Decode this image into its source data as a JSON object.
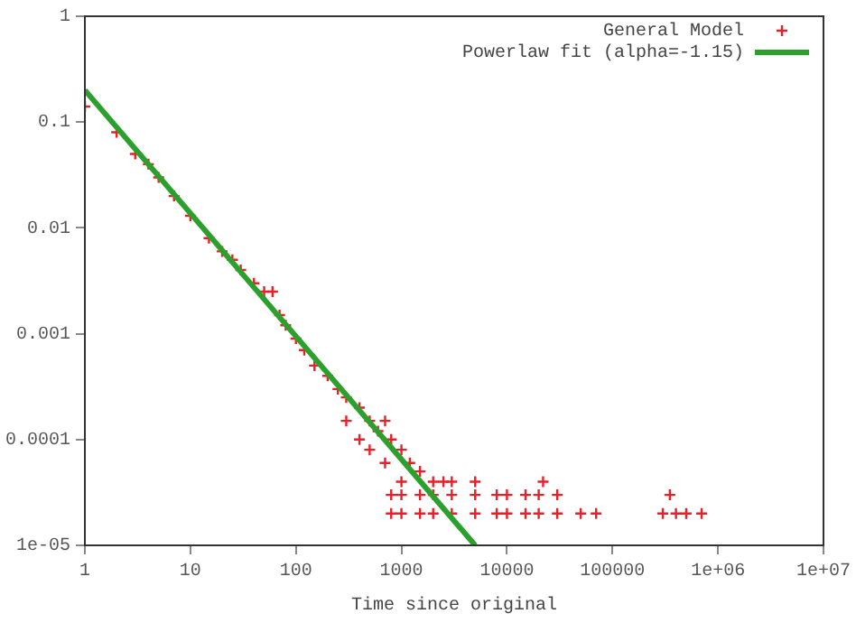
{
  "chart_data": {
    "type": "scatter",
    "xlabel": "Time since original",
    "log": "xy",
    "legend": "top right",
    "grid": false,
    "xlim": [
      1,
      10000000
    ],
    "xticks": [
      1,
      10,
      100,
      1000,
      10000,
      100000,
      {
        "value": 1000000,
        "label": "1e+06"
      },
      {
        "value": 10000000,
        "label": "1e+07"
      }
    ],
    "ylim": [
      1e-05,
      1
    ],
    "yticks": [
      {
        "value": 1e-05,
        "label": "1e-05"
      },
      0.0001,
      0.001,
      0.01,
      0.1,
      1
    ],
    "series": [
      {
        "name": "General Model",
        "type": "scatter",
        "marker": "cross",
        "color": "#e8202a",
        "x": [
          1,
          2,
          3,
          4,
          5,
          7,
          10,
          15,
          20,
          25,
          30,
          40,
          50,
          60,
          70,
          80,
          100,
          120,
          150,
          200,
          250,
          300,
          300,
          400,
          400,
          500,
          500,
          600,
          700,
          700,
          800,
          1000,
          1000,
          1200,
          1500,
          2000,
          2500,
          3000,
          5000,
          22000,
          800,
          1000,
          1500,
          2000,
          3000,
          5000,
          8000,
          10000,
          15000,
          20000,
          30000,
          350000,
          800,
          1000,
          1500,
          2000,
          3000,
          5000,
          8000,
          10000,
          15000,
          20000,
          30000,
          50000,
          70000,
          300000,
          400000,
          500000,
          700000
        ],
        "values": [
          0.14,
          0.08,
          0.05,
          0.04,
          0.03,
          0.02,
          0.013,
          0.008,
          0.006,
          0.005,
          0.004,
          0.003,
          0.0025,
          0.0025,
          0.0015,
          0.0012,
          0.0009,
          0.0007,
          0.0005,
          0.0004,
          0.0003,
          0.00025,
          0.00015,
          0.0002,
          0.0001,
          0.00015,
          8e-05,
          0.00012,
          0.00015,
          6e-05,
          0.0001,
          8e-05,
          4e-05,
          6e-05,
          5e-05,
          4e-05,
          4e-05,
          4e-05,
          4e-05,
          4e-05,
          3e-05,
          3e-05,
          3e-05,
          3e-05,
          3e-05,
          3e-05,
          3e-05,
          3e-05,
          3e-05,
          3e-05,
          3e-05,
          3e-05,
          2e-05,
          2e-05,
          2e-05,
          2e-05,
          2e-05,
          2e-05,
          2e-05,
          2e-05,
          2e-05,
          2e-05,
          2e-05,
          2e-05,
          2e-05,
          2e-05,
          2e-05,
          2e-05,
          2e-05
        ]
      },
      {
        "name": "Powerlaw fit (alpha=-1.15)",
        "type": "line",
        "marker": "none",
        "line_style": "solid",
        "color": "#2ca02c",
        "x": [
          1,
          5000
        ],
        "values": [
          0.2,
          1e-05
        ]
      }
    ]
  }
}
